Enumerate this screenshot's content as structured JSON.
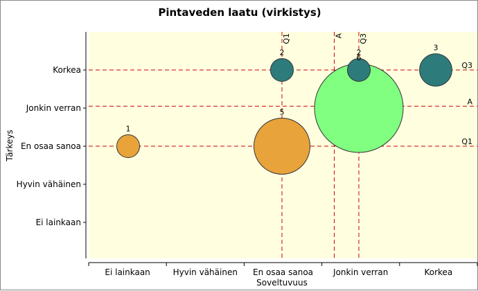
{
  "chart_data": {
    "type": "bubble",
    "title": "Pintaveden laatu (virkistys)",
    "xlabel": "Soveltuvuus",
    "ylabel": "Tärkeys",
    "x_categories": [
      "Ei lainkaan",
      "Hyvin vähäinen",
      "En osaa sanoa",
      "Jonkin verran",
      "Korkea"
    ],
    "y_categories": [
      "Ei lainkaan",
      "Hyvin vähäinen",
      "En osaa sanoa",
      "Jonkin verran",
      "Korkea"
    ],
    "points": [
      {
        "label": "1",
        "x": 1.0,
        "y": 3.0,
        "size": 1,
        "color": "#E8A33A"
      },
      {
        "label": "2",
        "x": 3.0,
        "y": 5.0,
        "size": 1,
        "color": "#2E7B7B"
      },
      {
        "label": "3",
        "x": 5.0,
        "y": 5.0,
        "size": 2,
        "color": "#2E7B7B"
      },
      {
        "label": "5",
        "x": 3.0,
        "y": 3.0,
        "size": 6,
        "color": "#E8A33A"
      },
      {
        "label": "6",
        "x": 4.0,
        "y": 4.0,
        "size": 15,
        "color": "#80FF80"
      },
      {
        "label": "2",
        "x": 4.0,
        "y": 5.0,
        "size": 1,
        "color": "#2E7B7B"
      }
    ],
    "reference_lines": {
      "vertical": [
        {
          "label": "Q1",
          "x": 3.0
        },
        {
          "label": "A",
          "x": 3.68
        },
        {
          "label": "Q3",
          "x": 4.0
        }
      ],
      "horizontal": [
        {
          "label": "Q3",
          "y": 5.0
        },
        {
          "label": "A",
          "y": 4.05
        },
        {
          "label": "Q1",
          "y": 3.0
        }
      ]
    },
    "colors": {
      "plot_background": "#FFFFE0",
      "reference_line": "#CC0000",
      "outline": "#333333"
    },
    "grid": false
  }
}
